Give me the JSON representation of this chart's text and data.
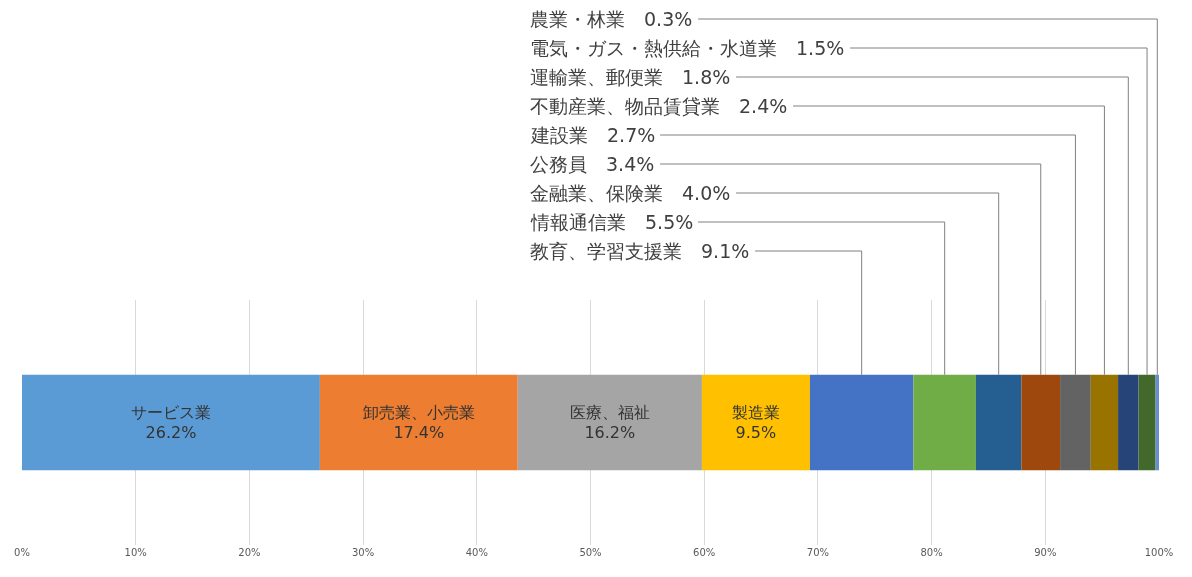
{
  "chart_data": {
    "type": "bar",
    "orientation": "horizontal",
    "stacked": true,
    "categories": [
      null
    ],
    "series": [
      {
        "name": "サービス業",
        "color": "#5b9bd5",
        "values": [
          26.2
        ],
        "value_labels": [
          "26.2%"
        ]
      },
      {
        "name": "卸売業、小売業",
        "color": "#ed7d31",
        "values": [
          17.4
        ],
        "value_labels": [
          "17.4%"
        ]
      },
      {
        "name": "医療、福祉",
        "color": "#a5a5a5",
        "values": [
          16.2
        ],
        "value_labels": [
          "16.2%"
        ]
      },
      {
        "name": "製造業",
        "color": "#ffc000",
        "values": [
          9.5
        ],
        "value_labels": [
          "9.5%"
        ]
      },
      {
        "name": "教育、学習支援業",
        "color": "#4472c4",
        "values": [
          9.1
        ],
        "value_labels": [
          "9.1%"
        ]
      },
      {
        "name": "情報通信業",
        "color": "#70ad47",
        "values": [
          5.5
        ],
        "value_labels": [
          "5.5%"
        ]
      },
      {
        "name": "金融業、保険業",
        "color": "#255e91",
        "values": [
          4.0
        ],
        "value_labels": [
          "4.0%"
        ]
      },
      {
        "name": "公務員",
        "color": "#9e480e",
        "values": [
          3.4
        ],
        "value_labels": [
          "3.4%"
        ]
      },
      {
        "name": "建設業",
        "color": "#636363",
        "values": [
          2.7
        ],
        "value_labels": [
          "2.7%"
        ]
      },
      {
        "name": "不動産業、物品賃貸業",
        "color": "#997300",
        "values": [
          2.4
        ],
        "value_labels": [
          "2.4%"
        ]
      },
      {
        "name": "運輸業、郵便業",
        "color": "#264478",
        "values": [
          1.8
        ],
        "value_labels": [
          "1.8%"
        ]
      },
      {
        "name": "電気・ガス・熱供給・水道業",
        "color": "#43682b",
        "values": [
          1.5
        ],
        "value_labels": [
          "1.5%"
        ]
      },
      {
        "name": "農業・林業",
        "color": "#698ed0",
        "values": [
          0.3
        ],
        "value_labels": [
          "0.3%"
        ]
      }
    ],
    "xlim": [
      0,
      100
    ],
    "xticks": [
      {
        "value": 0,
        "label": "0%"
      },
      {
        "value": 10,
        "label": "10%"
      },
      {
        "value": 20,
        "label": "20%"
      },
      {
        "value": 30,
        "label": "30%"
      },
      {
        "value": 40,
        "label": "40%"
      },
      {
        "value": 50,
        "label": "50%"
      },
      {
        "value": 60,
        "label": "60%"
      },
      {
        "value": 70,
        "label": "70%"
      },
      {
        "value": 80,
        "label": "80%"
      },
      {
        "value": 90,
        "label": "90%"
      },
      {
        "value": 100,
        "label": "100%"
      }
    ],
    "grid": "x",
    "tick_labels": "x"
  }
}
